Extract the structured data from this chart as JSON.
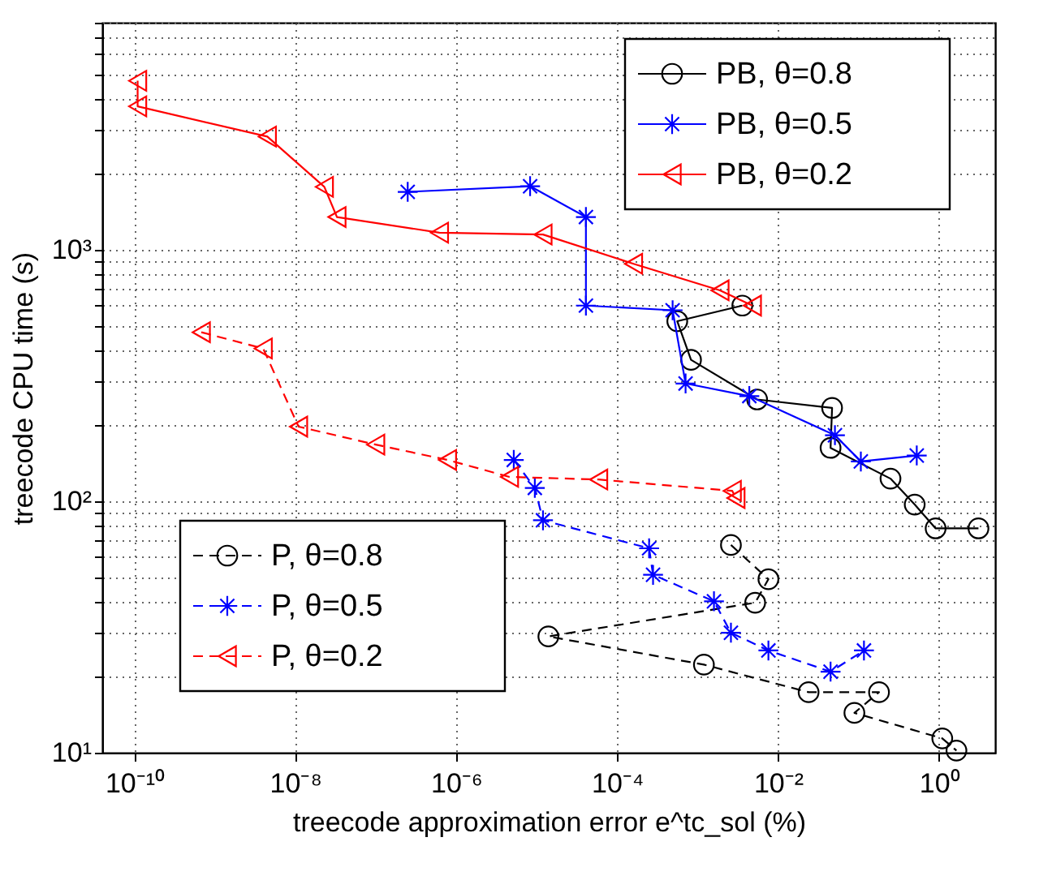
{
  "chart_data": {
    "type": "line",
    "xlabel": "treecode approximation error e^tc_sol (%)",
    "ylabel": "treecode CPU time (s)",
    "log": "xy",
    "grid": true,
    "legend": "top right",
    "xlim": [
      4e-11,
      5
    ],
    "ylim": [
      10,
      8000
    ],
    "xticks": [
      {
        "value": 1e-10,
        "label": "10⁻¹⁰"
      },
      {
        "value": 1e-08,
        "label": "10⁻⁸"
      },
      {
        "value": 1e-06,
        "label": "10⁻⁶"
      },
      {
        "value": 0.0001,
        "label": "10⁻⁴"
      },
      {
        "value": 0.01,
        "label": "10⁻²"
      },
      {
        "value": 1,
        "label": "10⁰"
      }
    ],
    "yticks": [
      {
        "value": 10,
        "label": "10¹"
      },
      {
        "value": 100,
        "label": "10²"
      },
      {
        "value": 1000,
        "label": "10³"
      }
    ],
    "series": [
      {
        "name": "PB, θ=0.8",
        "color": "#000000",
        "marker": "circle",
        "line_style": "solid",
        "x": [
          0.0036,
          0.00056,
          0.00083,
          0.0055,
          0.047,
          0.045,
          0.25,
          0.5,
          0.91,
          3.1
        ],
        "values": [
          600,
          520,
          365,
          254,
          235,
          163,
          123,
          97,
          78,
          78
        ]
      },
      {
        "name": "PB, θ=0.5",
        "color": "#0000ff",
        "marker": "cross",
        "line_style": "solid",
        "x": [
          2.5e-07,
          8.3e-06,
          4.1e-05,
          4.1e-05,
          0.00049,
          0.00071,
          0.0044,
          0.051,
          0.107,
          0.53
        ],
        "values": [
          1700,
          1790,
          1350,
          600,
          575,
          294,
          262,
          183,
          144,
          152
        ]
      },
      {
        "name": "PB, θ=0.2",
        "color": "#ff0000",
        "marker": "triangle",
        "line_style": "solid",
        "x": [
          1.1e-10,
          1.1e-10,
          4.5e-09,
          2.3e-08,
          3.3e-08,
          6.2e-07,
          1.2e-05,
          0.00016,
          0.0019,
          0.0048
        ],
        "values": [
          4700,
          3720,
          2820,
          1780,
          1350,
          1170,
          1150,
          880,
          690,
          600
        ]
      },
      {
        "name": "P, θ=0.8",
        "color": "#000000",
        "marker": "circle",
        "line_style": "dashed",
        "x": [
          0.0026,
          0.0076,
          0.0052,
          1.4e-05,
          0.0012,
          0.024,
          0.18,
          0.089,
          1.1,
          1.65
        ],
        "values": [
          67,
          49,
          39.5,
          29,
          22.4,
          17.4,
          17.4,
          14.4,
          11.4,
          10.2
        ]
      },
      {
        "name": "P, θ=0.5",
        "color": "#0000ff",
        "marker": "cross",
        "line_style": "dashed",
        "x": [
          5.2e-06,
          9.5e-06,
          1.2e-05,
          0.00025,
          0.00028,
          0.0016,
          0.0026,
          0.0076,
          0.045,
          0.117
        ],
        "values": [
          146,
          113,
          84,
          65,
          51,
          40,
          30,
          25.5,
          21,
          25.5
        ]
      },
      {
        "name": "P, θ=0.2",
        "color": "#ff0000",
        "marker": "triangle",
        "line_style": "dashed",
        "x": [
          6.8e-10,
          4e-09,
          1.1e-08,
          1e-07,
          7.8e-07,
          4.6e-06,
          5.9e-05,
          0.0027,
          0.003
        ],
        "values": [
          470,
          405,
          198,
          168,
          146,
          125,
          122,
          110,
          103
        ]
      }
    ]
  }
}
